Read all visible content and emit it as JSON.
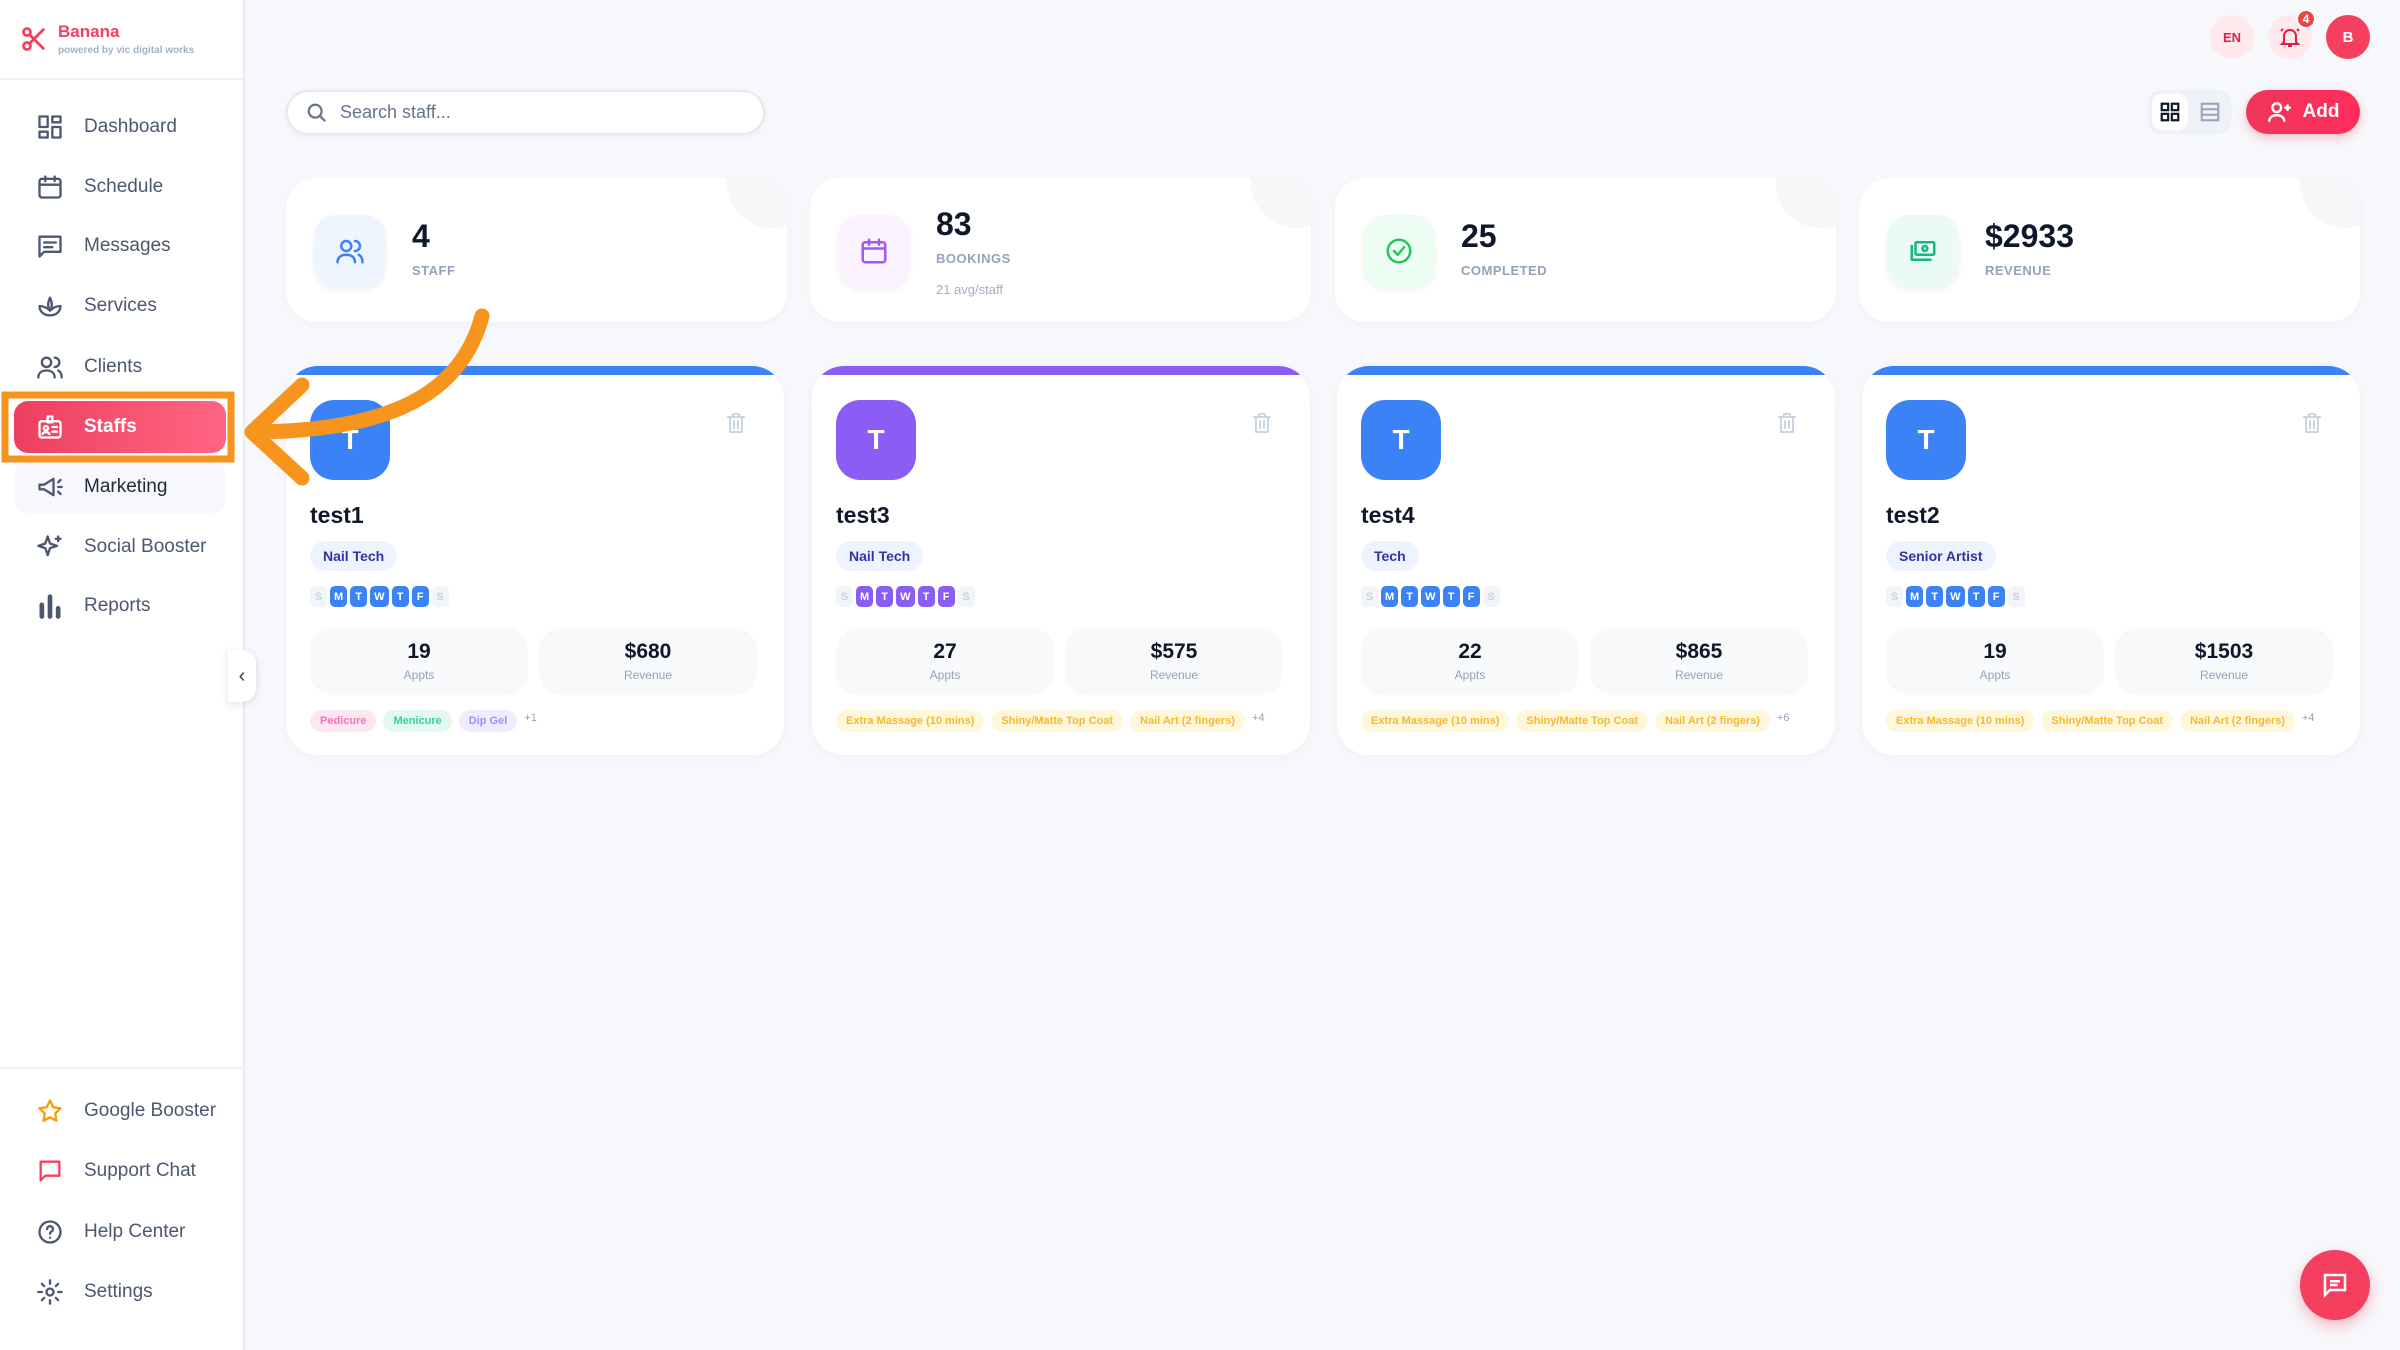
{
  "brand": {
    "name": "Banana",
    "tagline": "powered by vic digital works",
    "color": "#f43f5e"
  },
  "sidebar": {
    "items": [
      {
        "label": "Dashboard",
        "icon": "dashboard-icon"
      },
      {
        "label": "Schedule",
        "icon": "calendar-icon"
      },
      {
        "label": "Messages",
        "icon": "message-icon"
      },
      {
        "label": "Services",
        "icon": "lotus-icon"
      },
      {
        "label": "Clients",
        "icon": "users-icon"
      },
      {
        "label": "Staffs",
        "icon": "id-badge-icon",
        "active": true
      },
      {
        "label": "Marketing",
        "icon": "megaphone-icon"
      },
      {
        "label": "Social Booster",
        "icon": "sparkles-icon"
      },
      {
        "label": "Reports",
        "icon": "bar-chart-icon"
      }
    ],
    "bottom_items": [
      {
        "label": "Google Booster",
        "icon": "star-icon"
      },
      {
        "label": "Support Chat",
        "icon": "chat-icon"
      },
      {
        "label": "Help Center",
        "icon": "help-icon"
      },
      {
        "label": "Settings",
        "icon": "gear-icon"
      }
    ]
  },
  "search": {
    "placeholder": "Search staff...",
    "value": ""
  },
  "header": {
    "language": "EN",
    "notifications": "4",
    "avatar_initial": "B",
    "add_label": "Add"
  },
  "stats": [
    {
      "value": "4",
      "label": "STAFF",
      "icon": "users-icon",
      "color": "#3b82f6"
    },
    {
      "value": "83",
      "label": "BOOKINGS",
      "sub": "21 avg/staff",
      "icon": "calendar-icon",
      "color": "#a855f7"
    },
    {
      "value": "25",
      "label": "COMPLETED",
      "icon": "check-circle-icon",
      "color": "#22c55e"
    },
    {
      "value": "$2933",
      "label": "REVENUE",
      "icon": "money-icon",
      "color": "#10b981"
    }
  ],
  "staff_labels": {
    "appts": "Appts",
    "revenue": "Revenue"
  },
  "days": [
    "S",
    "M",
    "T",
    "W",
    "T",
    "F",
    "S"
  ],
  "staff": [
    {
      "initial": "T",
      "name": "test1",
      "role": "Nail Tech",
      "color": "#3b82f6",
      "active_days": [
        1,
        2,
        3,
        4,
        5
      ],
      "appts": "19",
      "revenue": "$680",
      "tags": [
        {
          "label": "Pedicure",
          "color": "pink"
        },
        {
          "label": "Menicure",
          "color": "green"
        },
        {
          "label": "Dip Gel",
          "color": "purple"
        }
      ],
      "more": "+1"
    },
    {
      "initial": "T",
      "name": "test3",
      "role": "Nail Tech",
      "color": "#8b5cf6",
      "active_days": [
        1,
        2,
        3,
        4,
        5
      ],
      "appts": "27",
      "revenue": "$575",
      "tags": [
        {
          "label": "Extra Massage (10 mins)",
          "color": "yellow"
        },
        {
          "label": "Shiny/Matte Top Coat",
          "color": "yellow"
        },
        {
          "label": "Nail Art (2 fingers)",
          "color": "yellow"
        }
      ],
      "more": "+4"
    },
    {
      "initial": "T",
      "name": "test4",
      "role": "Tech",
      "color": "#3b82f6",
      "active_days": [
        1,
        2,
        3,
        4,
        5
      ],
      "appts": "22",
      "revenue": "$865",
      "tags": [
        {
          "label": "Extra Massage (10 mins)",
          "color": "yellow"
        },
        {
          "label": "Shiny/Matte Top Coat",
          "color": "yellow"
        },
        {
          "label": "Nail Art (2 fingers)",
          "color": "yellow"
        }
      ],
      "more": "+6"
    },
    {
      "initial": "T",
      "name": "test2",
      "role": "Senior Artist",
      "color": "#3b82f6",
      "active_days": [
        1,
        2,
        3,
        4,
        5
      ],
      "appts": "19",
      "revenue": "$1503",
      "tags": [
        {
          "label": "Extra Massage (10 mins)",
          "color": "yellow"
        },
        {
          "label": "Shiny/Matte Top Coat",
          "color": "yellow"
        },
        {
          "label": "Nail Art (2 fingers)",
          "color": "yellow"
        }
      ],
      "more": "+4"
    }
  ],
  "annotation_color": "#f7941d"
}
